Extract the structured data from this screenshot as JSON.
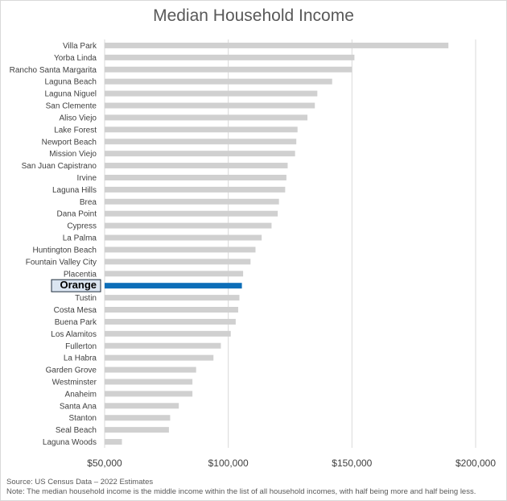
{
  "chart_data": {
    "type": "bar",
    "orientation": "horizontal",
    "title": "Median Household Income",
    "categories": [
      "Villa Park",
      "Yorba Linda",
      "Rancho Santa Margarita",
      "Laguna Beach",
      "Laguna Niguel",
      "San Clemente",
      "Aliso Viejo",
      "Lake Forest",
      "Newport Beach",
      "Mission Viejo",
      "San Juan Capistrano",
      "Irvine",
      "Laguna Hills",
      "Brea",
      "Dana Point",
      "Cypress",
      "La Palma",
      "Huntington Beach",
      "Fountain Valley City",
      "Placentia",
      "Orange",
      "Tustin",
      "Costa Mesa",
      "Buena Park",
      "Los Alamitos",
      "Fullerton",
      "La Habra",
      "Garden Grove",
      "Westminster",
      "Anaheim",
      "Santa Ana",
      "Stanton",
      "Seal Beach",
      "Laguna Woods"
    ],
    "values": [
      189000,
      151000,
      150000,
      142000,
      136000,
      135000,
      132000,
      128000,
      127500,
      127000,
      124000,
      123500,
      123000,
      120500,
      120000,
      117500,
      113500,
      111000,
      109000,
      106000,
      105500,
      104500,
      104000,
      103000,
      101000,
      97000,
      94000,
      87000,
      85500,
      85500,
      80000,
      76500,
      76000,
      57000
    ],
    "highlight": "Orange",
    "xlim": [
      50000,
      200000
    ],
    "xticks": [
      "$50,000",
      "$100,000",
      "$150,000",
      "$200,000"
    ],
    "xtick_values": [
      50000,
      100000,
      150000,
      200000
    ],
    "grid": true,
    "xlabel": "",
    "ylabel": ""
  },
  "colors": {
    "bar": "#d0d0d0",
    "highlight": "#0d6eb8",
    "grid": "#d9d9d9",
    "text": "#404040",
    "highlight_box_fill": "#dbe5f1",
    "highlight_box_border": "#1f2d3d"
  },
  "footnotes": {
    "source": "Source: US Census Data – 2022 Estimates",
    "note": "Note: The median household income is the middle income within the list of all household incomes, with half being more and half being less."
  }
}
